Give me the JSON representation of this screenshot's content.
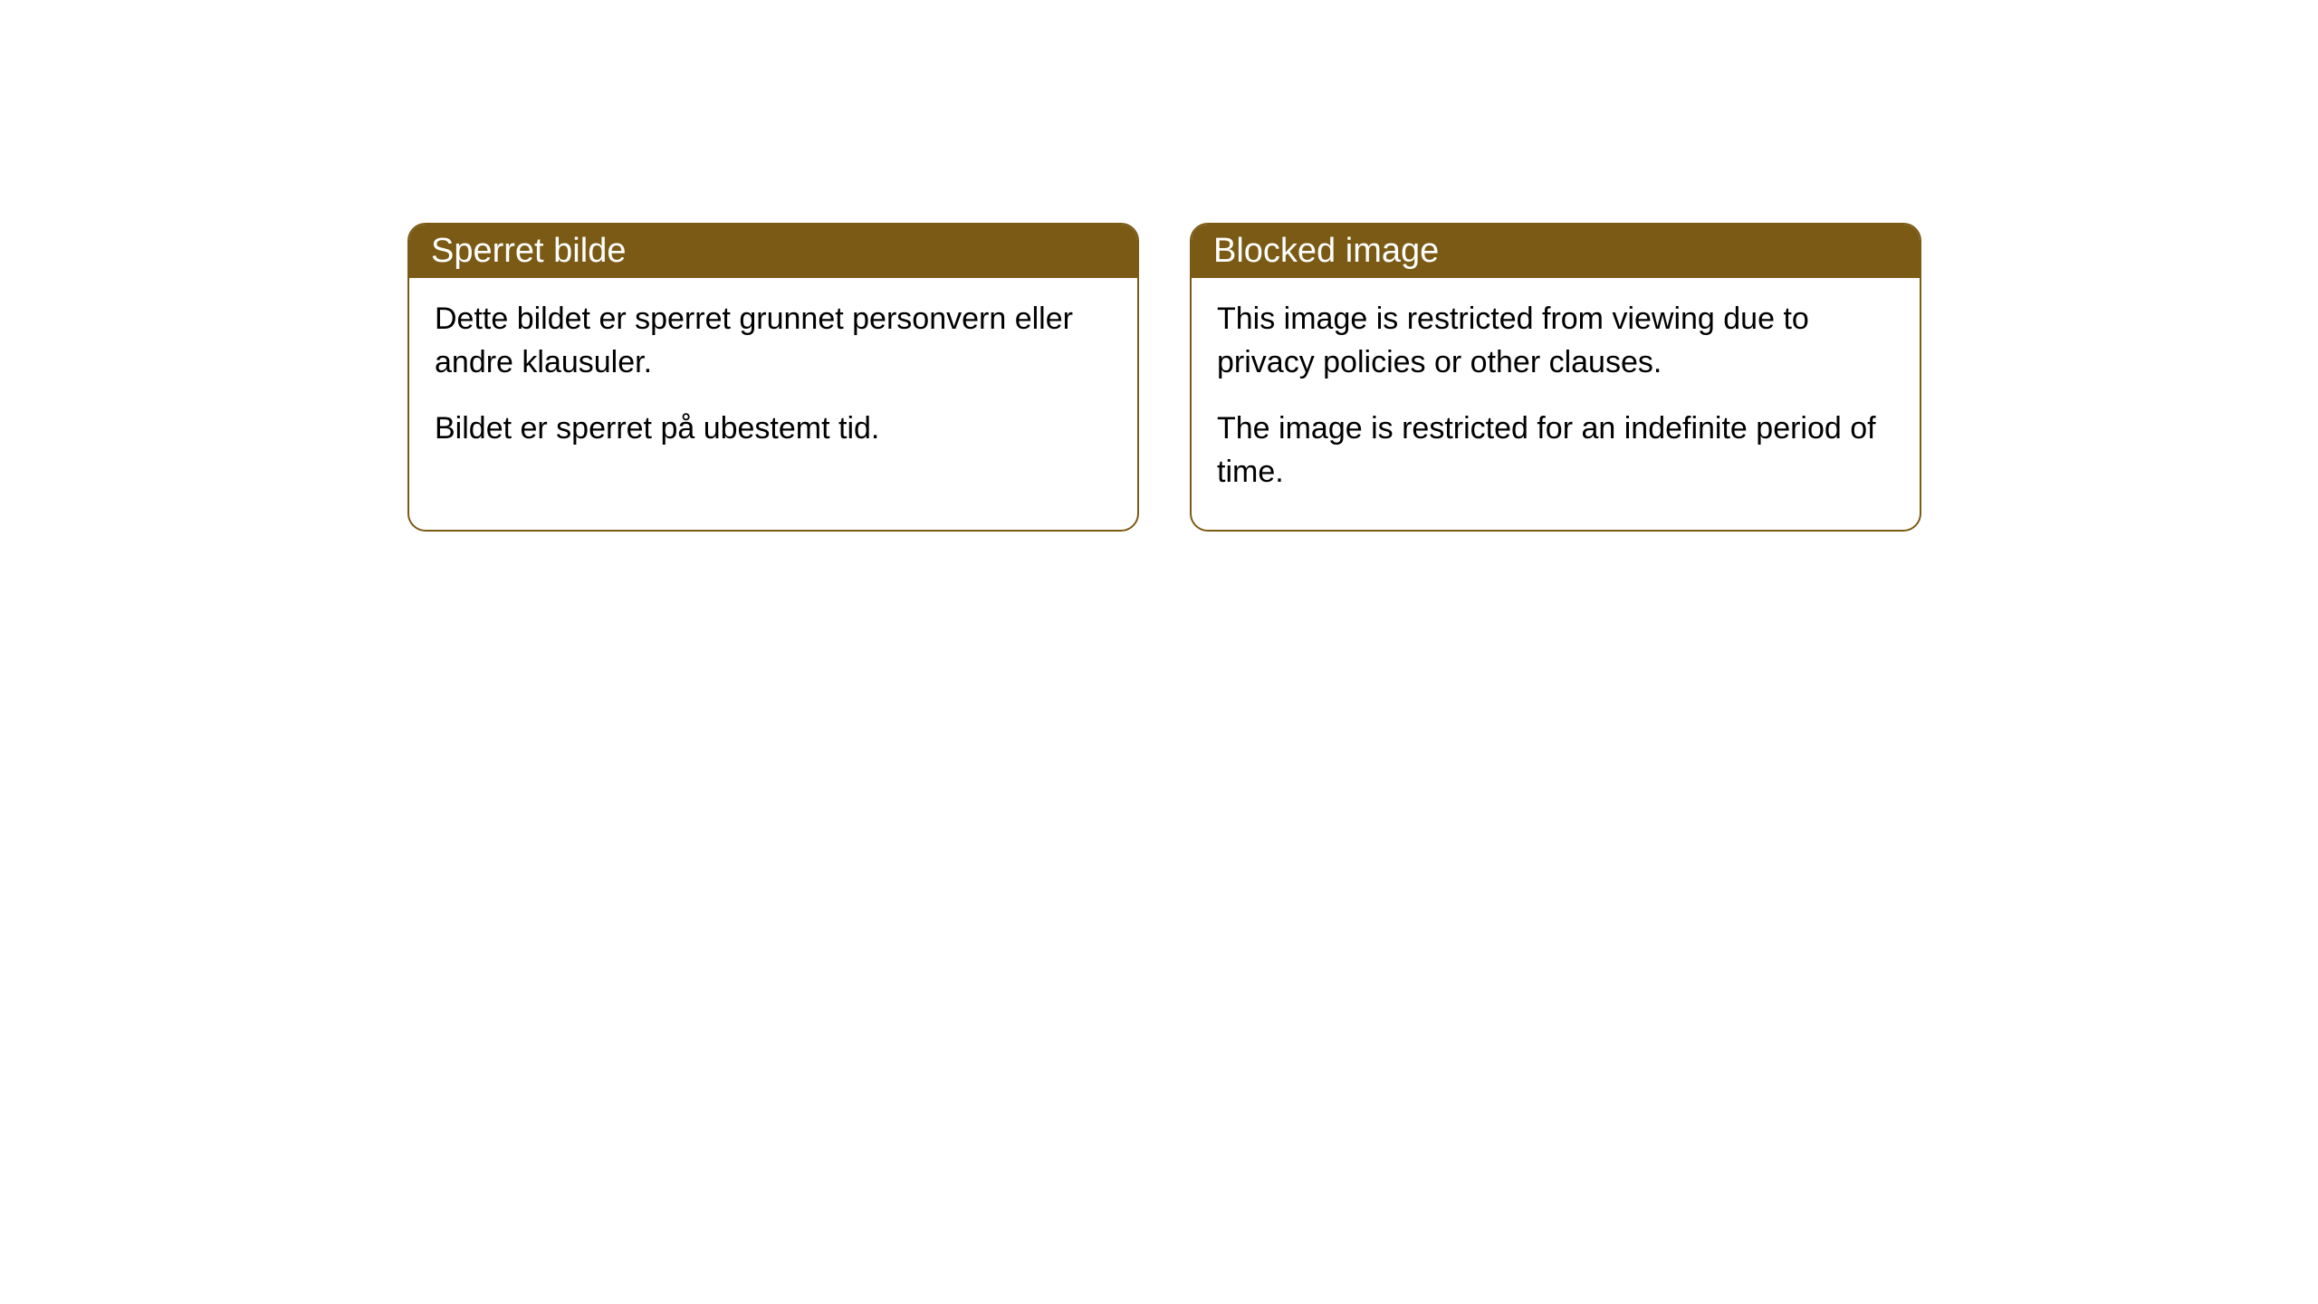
{
  "cards": [
    {
      "title": "Sperret bilde",
      "paragraph1": "Dette bildet er sperret grunnet personvern eller andre klausuler.",
      "paragraph2": "Bildet er sperret på ubestemt tid."
    },
    {
      "title": "Blocked image",
      "paragraph1": "This image is restricted from viewing due to privacy policies or other clauses.",
      "paragraph2": "The image is restricted for an indefinite period of time."
    }
  ],
  "styling": {
    "header_background_color": "#7a5a14",
    "header_text_color": "#ffffff",
    "border_color": "#7a5a14",
    "card_background_color": "#ffffff",
    "body_text_color": "#000000",
    "page_background_color": "#ffffff",
    "border_radius": 20,
    "header_fontsize": 38,
    "body_fontsize": 34
  }
}
